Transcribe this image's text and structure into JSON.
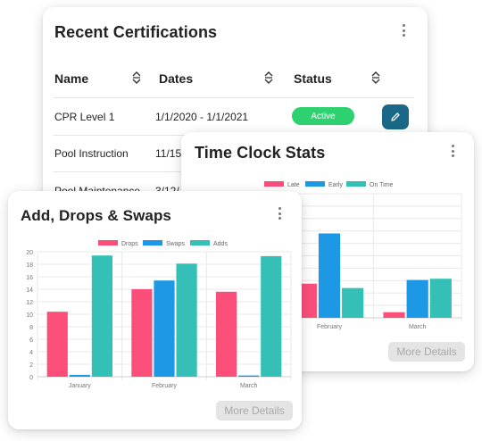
{
  "certifications": {
    "title": "Recent Certifications",
    "columns": {
      "name": "Name",
      "dates": "Dates",
      "status": "Status"
    },
    "rows": [
      {
        "name": "CPR Level 1",
        "dates": "1/1/2020 - 1/1/2021",
        "status": "Active"
      },
      {
        "name": "Pool Instruction",
        "dates": "11/15/"
      },
      {
        "name": "Pool Maintenance",
        "dates": "3/12/"
      }
    ]
  },
  "time_clock": {
    "title": "Time Clock Stats",
    "more_label": "More Details"
  },
  "add_drops": {
    "title": "Add, Drops & Swaps",
    "more_label": "More Details"
  },
  "colors": {
    "pink": "#fb4f7a",
    "blue": "#1d98e4",
    "teal": "#34c0b6",
    "active": "#2ed16f",
    "edit": "#1a6887"
  },
  "chart_data": [
    {
      "type": "bar",
      "chart": "time_clock",
      "categories": [
        "January",
        "February",
        "March"
      ],
      "series": [
        {
          "name": "Late",
          "color": "#fb4f7a",
          "values": [
            null,
            5.5,
            0.9
          ]
        },
        {
          "name": "Early",
          "color": "#1d98e4",
          "values": [
            null,
            13.6,
            6.1
          ]
        },
        {
          "name": "On Time",
          "color": "#34c0b6",
          "values": [
            null,
            4.8,
            6.3
          ]
        }
      ],
      "yticks": [
        "20"
      ],
      "ylim": [
        0,
        20
      ],
      "legend": "top",
      "grid": true
    },
    {
      "type": "bar",
      "chart": "add_drops",
      "categories": [
        "January",
        "February",
        "March"
      ],
      "series": [
        {
          "name": "Drops",
          "color": "#fb4f7a",
          "values": [
            10.4,
            14,
            13.6
          ]
        },
        {
          "name": "Swaps",
          "color": "#1d98e4",
          "values": [
            0.3,
            15.4,
            0.2
          ]
        },
        {
          "name": "Adds",
          "color": "#34c0b6",
          "values": [
            19.4,
            18.1,
            19.3
          ]
        }
      ],
      "yticks": [
        "0",
        "2",
        "4",
        "6",
        "8",
        "10",
        "12",
        "14",
        "16",
        "18",
        "20"
      ],
      "ylim": [
        0,
        20
      ],
      "legend": "top",
      "grid": true
    }
  ]
}
